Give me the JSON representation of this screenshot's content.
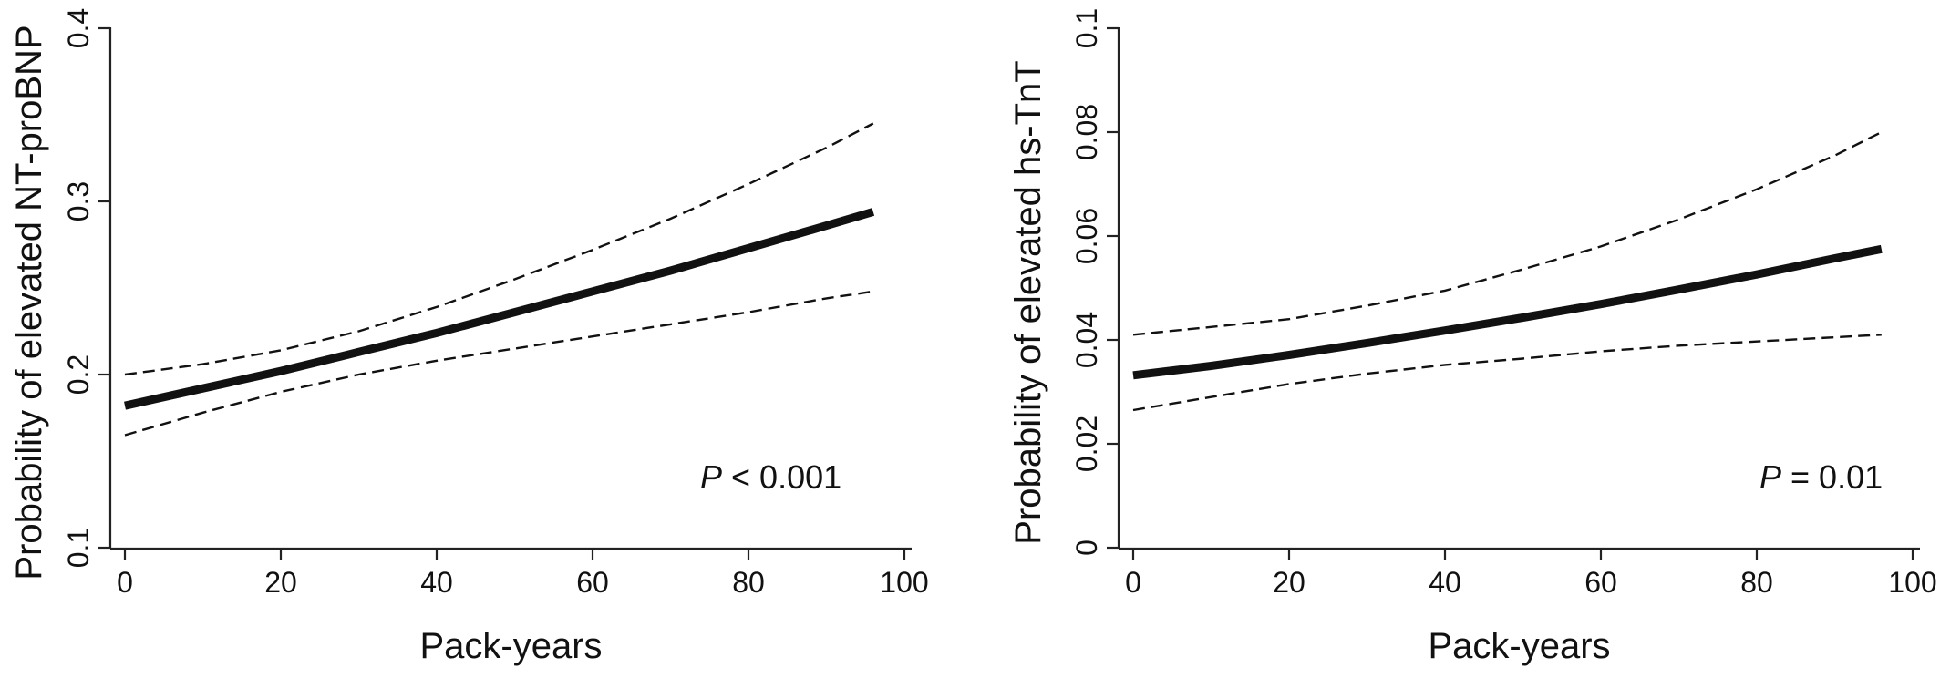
{
  "chart_data": [
    {
      "type": "line",
      "title": "",
      "xlabel": "Pack-years",
      "ylabel": "Probability of elevated NT-proBNP",
      "xlim": [
        0,
        100
      ],
      "ylim": [
        0.1,
        0.4
      ],
      "x_ticks": [
        "0",
        "20",
        "40",
        "60",
        "80",
        "100"
      ],
      "y_ticks": [
        "0.1",
        "0.2",
        "0.3",
        "0.4"
      ],
      "grid": false,
      "annotation": {
        "italic": "P",
        "text": " < 0.001"
      },
      "x": [
        0,
        10,
        20,
        30,
        40,
        50,
        60,
        70,
        80,
        90,
        96
      ],
      "series": [
        {
          "style": "solid",
          "values": [
            0.182,
            0.192,
            0.202,
            0.213,
            0.224,
            0.236,
            0.248,
            0.26,
            0.273,
            0.286,
            0.294
          ]
        },
        {
          "style": "dashed",
          "values": [
            0.2,
            0.206,
            0.214,
            0.225,
            0.239,
            0.255,
            0.272,
            0.29,
            0.31,
            0.331,
            0.345
          ]
        },
        {
          "style": "dashed",
          "values": [
            0.165,
            0.178,
            0.19,
            0.2,
            0.208,
            0.215,
            0.222,
            0.229,
            0.236,
            0.244,
            0.248
          ]
        }
      ]
    },
    {
      "type": "line",
      "title": "",
      "xlabel": "Pack-years",
      "ylabel": "Probability of elevated hs-TnT",
      "xlim": [
        0,
        100
      ],
      "ylim": [
        0,
        0.1
      ],
      "x_ticks": [
        "0",
        "20",
        "40",
        "60",
        "80",
        "100"
      ],
      "y_ticks": [
        "0",
        "0.02",
        "0.04",
        "0.06",
        "0.08",
        "0.1"
      ],
      "grid": false,
      "annotation": {
        "italic": "P",
        "text": " = 0.01"
      },
      "x": [
        0,
        10,
        20,
        30,
        40,
        50,
        60,
        70,
        80,
        90,
        96
      ],
      "series": [
        {
          "style": "solid",
          "values": [
            0.0332,
            0.035,
            0.0371,
            0.0394,
            0.0418,
            0.0443,
            0.0469,
            0.0497,
            0.0526,
            0.0557,
            0.0575
          ]
        },
        {
          "style": "dashed",
          "values": [
            0.041,
            0.0425,
            0.044,
            0.0466,
            0.0495,
            0.0536,
            0.058,
            0.0632,
            0.069,
            0.0755,
            0.08
          ]
        },
        {
          "style": "dashed",
          "values": [
            0.0265,
            0.029,
            0.0315,
            0.0335,
            0.0352,
            0.0364,
            0.0378,
            0.0389,
            0.0397,
            0.0405,
            0.041
          ]
        }
      ]
    }
  ]
}
